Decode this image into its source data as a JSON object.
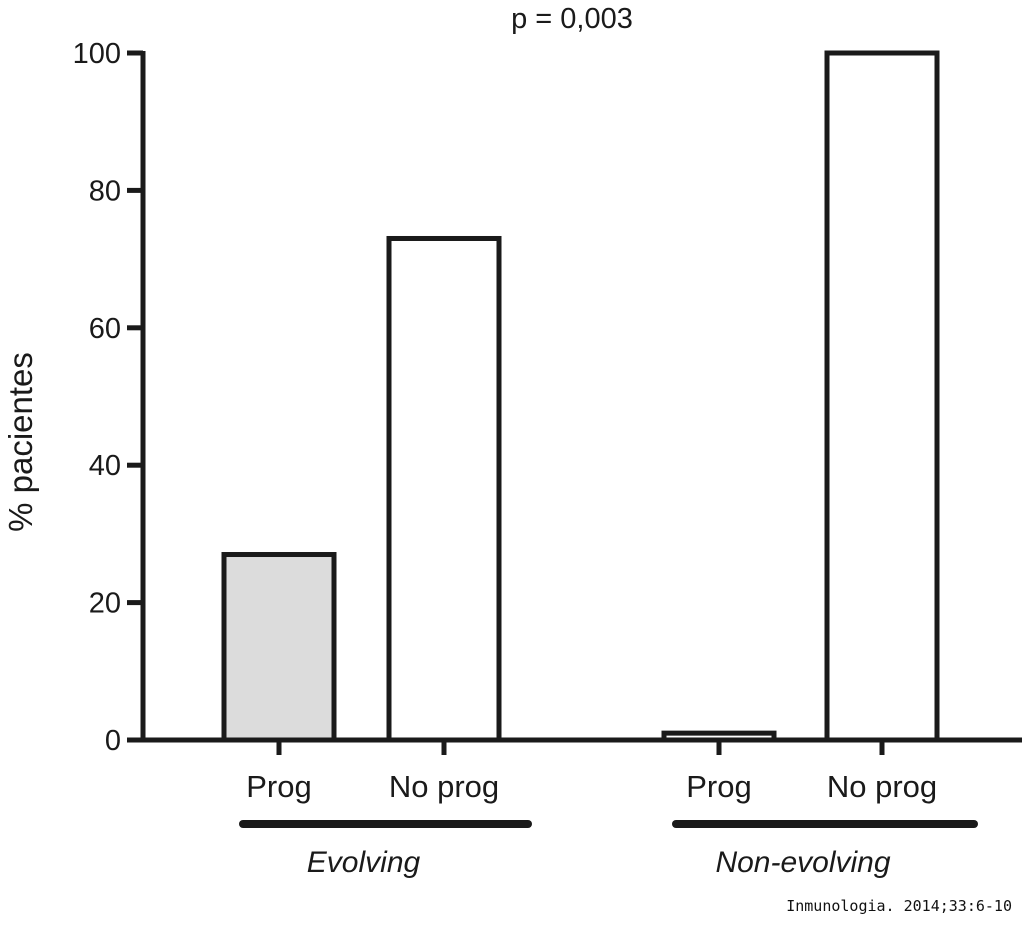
{
  "chart_data": {
    "type": "bar",
    "annotation": "p = 0,003",
    "ylabel": "% pacientes",
    "ylim": [
      0,
      100
    ],
    "yticks": [
      0,
      20,
      40,
      60,
      80,
      100
    ],
    "categories": [
      "Prog",
      "No prog",
      "Prog",
      "No prog"
    ],
    "values": [
      27,
      73,
      1,
      100
    ],
    "groups": [
      {
        "label": "Evolving",
        "bars": [
          0,
          1
        ]
      },
      {
        "label": "Non-evolving",
        "bars": [
          2,
          3
        ]
      }
    ],
    "bar_fills": [
      "#dcdcdc",
      "#ffffff",
      "#ffffff",
      "#ffffff"
    ],
    "grid": false,
    "legend": "none"
  },
  "credit": "Inmunologia. 2014;33:6-10",
  "colors": {
    "stroke": "#1a1a1a",
    "prog_fill": "#dcdcdc",
    "background": "#ffffff"
  }
}
